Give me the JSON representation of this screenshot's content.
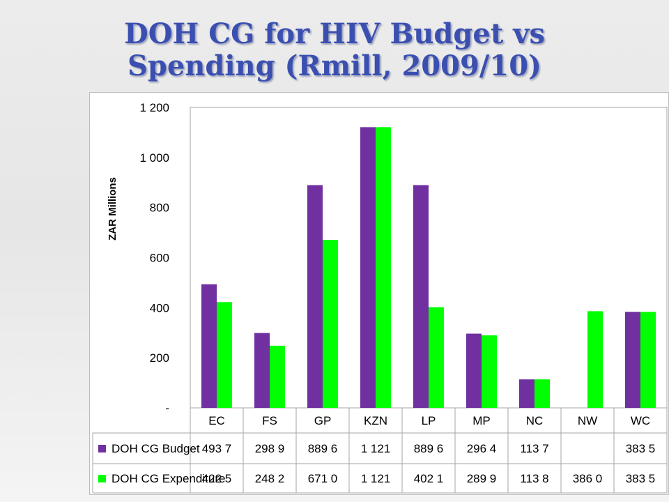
{
  "slide": {
    "title_line1": "DOH CG for HIV Budget vs",
    "title_line2": "Spending (Rmill, 2009/10)"
  },
  "chart_data": {
    "type": "bar",
    "ylabel": "ZAR Millions",
    "ylim": [
      0,
      1200
    ],
    "yticks": [
      {
        "value": 0,
        "label": "-"
      },
      {
        "value": 200,
        "label": "200"
      },
      {
        "value": 400,
        "label": "400"
      },
      {
        "value": 600,
        "label": "600"
      },
      {
        "value": 800,
        "label": "800"
      },
      {
        "value": 1000,
        "label": "1 000"
      },
      {
        "value": 1200,
        "label": "1 200"
      }
    ],
    "grid": false,
    "legend": "data-table",
    "categories": [
      "EC",
      "FS",
      "GP",
      "KZN",
      "LP",
      "MP",
      "NC",
      "NW",
      "WC"
    ],
    "series": [
      {
        "name": "DOH CG Budget",
        "color": "#7030a0",
        "values": [
          493.7,
          298.9,
          889.6,
          1121,
          889.6,
          296.4,
          113.7,
          null,
          383.5
        ],
        "labels": [
          "493 7",
          "298 9",
          "889 6",
          "1 121",
          "889 6",
          "296 4",
          "113 7",
          "",
          "383 5"
        ]
      },
      {
        "name": "DOH CG Expenditure",
        "color": "#00ff00",
        "values": [
          422.5,
          248.2,
          671.0,
          1121,
          402.1,
          289.9,
          113.8,
          386.0,
          383.5
        ],
        "labels": [
          "422 5",
          "248 2",
          "671 0",
          "1 121",
          "402 1",
          "289 9",
          "113 8",
          "386 0",
          "383 5"
        ]
      }
    ]
  }
}
